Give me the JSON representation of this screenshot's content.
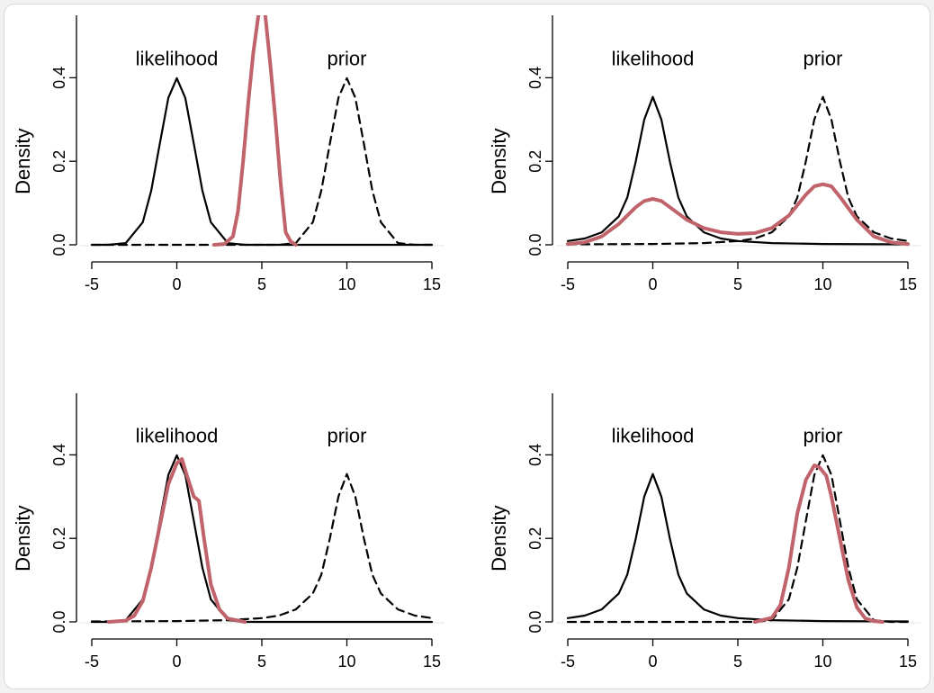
{
  "colors": {
    "posterior": "#c0636b",
    "curves": "#000000",
    "background": "#ffffff"
  },
  "chart_data": [
    {
      "type": "line",
      "panel": "top-left",
      "xlabel": "",
      "ylabel": "Density",
      "xlim": [
        -5,
        15
      ],
      "ylim": [
        0,
        0.55
      ],
      "xticks": [
        "-5",
        "0",
        "5",
        "10",
        "15"
      ],
      "yticks": [
        "0.0",
        "0.2",
        "0.4"
      ],
      "annotations": [
        "likelihood",
        "prior"
      ],
      "series": [
        {
          "style": "solid",
          "color": "#000000",
          "x": [
            -5,
            -4,
            -3,
            -2,
            -1.5,
            -1,
            -0.5,
            0,
            0.5,
            1,
            1.5,
            2,
            3,
            4,
            5,
            7,
            10,
            15
          ],
          "y": [
            0.0,
            0.0001,
            0.004,
            0.054,
            0.13,
            0.242,
            0.352,
            0.399,
            0.352,
            0.242,
            0.13,
            0.054,
            0.004,
            0.0001,
            0.0,
            0.0,
            0.0,
            0.0
          ]
        },
        {
          "style": "dashed",
          "color": "#000000",
          "x": [
            -5,
            0,
            5,
            6,
            7,
            8,
            8.5,
            9,
            9.5,
            10,
            10.5,
            11,
            11.5,
            12,
            13,
            14,
            15
          ],
          "y": [
            0.0,
            0.0,
            0.0,
            0.0001,
            0.004,
            0.054,
            0.13,
            0.242,
            0.352,
            0.399,
            0.352,
            0.242,
            0.13,
            0.054,
            0.004,
            0.0001,
            0.0
          ]
        },
        {
          "style": "solid-thick",
          "color": "#c0636b",
          "x": [
            2.2,
            2.8,
            3.3,
            3.6,
            3.9,
            4.2,
            4.5,
            4.8,
            5.0,
            5.2,
            5.5,
            5.8,
            6.1,
            6.4,
            6.7,
            7.0
          ],
          "y": [
            0.0,
            0.002,
            0.02,
            0.08,
            0.2,
            0.34,
            0.46,
            0.55,
            0.56,
            0.55,
            0.43,
            0.3,
            0.15,
            0.03,
            0.008,
            0.0
          ]
        }
      ]
    },
    {
      "type": "line",
      "panel": "top-right",
      "xlabel": "",
      "ylabel": "Density",
      "xlim": [
        -5,
        15
      ],
      "ylim": [
        0,
        0.55
      ],
      "xticks": [
        "-5",
        "0",
        "5",
        "10",
        "15"
      ],
      "yticks": [
        "0.0",
        "0.2",
        "0.4"
      ],
      "annotations": [
        "likelihood",
        "prior"
      ],
      "series": [
        {
          "style": "solid",
          "color": "#000000",
          "x": [
            -5,
            -4,
            -3,
            -2,
            -1.5,
            -1,
            -0.5,
            0,
            0.5,
            1,
            1.5,
            2,
            3,
            4,
            5,
            7,
            10,
            15
          ],
          "y": [
            0.009,
            0.015,
            0.03,
            0.068,
            0.113,
            0.2,
            0.3,
            0.354,
            0.3,
            0.2,
            0.113,
            0.068,
            0.03,
            0.015,
            0.009,
            0.004,
            0.002,
            0.001
          ]
        },
        {
          "style": "dashed",
          "color": "#000000",
          "x": [
            -5,
            0,
            3,
            5,
            6,
            7,
            8,
            8.5,
            9,
            9.5,
            10,
            10.5,
            11,
            11.5,
            12,
            13,
            14,
            15
          ],
          "y": [
            0.001,
            0.002,
            0.004,
            0.009,
            0.015,
            0.03,
            0.068,
            0.113,
            0.2,
            0.3,
            0.354,
            0.3,
            0.2,
            0.113,
            0.068,
            0.03,
            0.015,
            0.009
          ]
        },
        {
          "style": "solid-thick",
          "color": "#c0636b",
          "x": [
            -5,
            -4,
            -3,
            -2,
            -1,
            -0.5,
            0,
            0.5,
            1,
            2,
            3,
            4,
            5,
            6,
            7,
            8,
            9,
            9.5,
            10,
            10.5,
            11,
            12,
            13,
            14,
            15
          ],
          "y": [
            0.002,
            0.006,
            0.02,
            0.05,
            0.09,
            0.105,
            0.11,
            0.105,
            0.09,
            0.06,
            0.04,
            0.03,
            0.026,
            0.028,
            0.04,
            0.07,
            0.12,
            0.14,
            0.145,
            0.14,
            0.115,
            0.06,
            0.02,
            0.006,
            0.002
          ]
        }
      ]
    },
    {
      "type": "line",
      "panel": "bottom-left",
      "xlabel": "",
      "ylabel": "Density",
      "xlim": [
        -5,
        15
      ],
      "ylim": [
        0,
        0.55
      ],
      "xticks": [
        "-5",
        "0",
        "5",
        "10",
        "15"
      ],
      "yticks": [
        "0.0",
        "0.2",
        "0.4"
      ],
      "annotations": [
        "likelihood",
        "prior"
      ],
      "series": [
        {
          "style": "solid",
          "color": "#000000",
          "x": [
            -5,
            -4,
            -3,
            -2,
            -1.5,
            -1,
            -0.5,
            0,
            0.5,
            1,
            1.5,
            2,
            3,
            4,
            5,
            7,
            10,
            15
          ],
          "y": [
            0.0,
            0.0001,
            0.004,
            0.054,
            0.13,
            0.242,
            0.352,
            0.399,
            0.352,
            0.242,
            0.13,
            0.054,
            0.004,
            0.0001,
            0.0,
            0.0,
            0.0,
            0.0
          ]
        },
        {
          "style": "dashed",
          "color": "#000000",
          "x": [
            -5,
            0,
            3,
            5,
            6,
            7,
            8,
            8.5,
            9,
            9.5,
            10,
            10.5,
            11,
            11.5,
            12,
            13,
            14,
            15
          ],
          "y": [
            0.001,
            0.002,
            0.004,
            0.009,
            0.015,
            0.03,
            0.068,
            0.113,
            0.2,
            0.3,
            0.354,
            0.3,
            0.2,
            0.113,
            0.068,
            0.03,
            0.015,
            0.009
          ]
        },
        {
          "style": "solid-thick",
          "color": "#c0636b",
          "x": [
            -4,
            -3,
            -2.5,
            -2,
            -1.5,
            -1,
            -0.5,
            0,
            0.3,
            0.6,
            1,
            1.3,
            1.6,
            2,
            2.5,
            3,
            4
          ],
          "y": [
            0.0,
            0.003,
            0.015,
            0.05,
            0.13,
            0.23,
            0.33,
            0.38,
            0.39,
            0.35,
            0.3,
            0.29,
            0.2,
            0.09,
            0.03,
            0.008,
            0.0
          ]
        }
      ]
    },
    {
      "type": "line",
      "panel": "bottom-right",
      "xlabel": "",
      "ylabel": "Density",
      "xlim": [
        -5,
        15
      ],
      "ylim": [
        0,
        0.55
      ],
      "xticks": [
        "-5",
        "0",
        "5",
        "10",
        "15"
      ],
      "yticks": [
        "0.0",
        "0.2",
        "0.4"
      ],
      "annotations": [
        "likelihood",
        "prior"
      ],
      "series": [
        {
          "style": "solid",
          "color": "#000000",
          "x": [
            -5,
            -4,
            -3,
            -2,
            -1.5,
            -1,
            -0.5,
            0,
            0.5,
            1,
            1.5,
            2,
            3,
            4,
            5,
            7,
            10,
            15
          ],
          "y": [
            0.009,
            0.015,
            0.03,
            0.068,
            0.113,
            0.2,
            0.3,
            0.354,
            0.3,
            0.2,
            0.113,
            0.068,
            0.03,
            0.015,
            0.009,
            0.004,
            0.002,
            0.001
          ]
        },
        {
          "style": "dashed",
          "color": "#000000",
          "x": [
            -5,
            0,
            5,
            6,
            7,
            8,
            8.5,
            9,
            9.5,
            10,
            10.5,
            11,
            11.5,
            12,
            13,
            14,
            15
          ],
          "y": [
            0.0,
            0.0,
            0.0,
            0.0001,
            0.004,
            0.054,
            0.13,
            0.242,
            0.352,
            0.399,
            0.352,
            0.242,
            0.13,
            0.054,
            0.004,
            0.0001,
            0.0
          ]
        },
        {
          "style": "solid-thick",
          "color": "#c0636b",
          "x": [
            6,
            7,
            7.5,
            8,
            8.5,
            9,
            9.5,
            9.8,
            10.2,
            10.5,
            11,
            11.5,
            12,
            12.5,
            13,
            13.5
          ],
          "y": [
            0.0,
            0.01,
            0.04,
            0.13,
            0.26,
            0.34,
            0.375,
            0.37,
            0.35,
            0.3,
            0.2,
            0.1,
            0.035,
            0.008,
            0.002,
            0.0
          ]
        }
      ]
    }
  ]
}
